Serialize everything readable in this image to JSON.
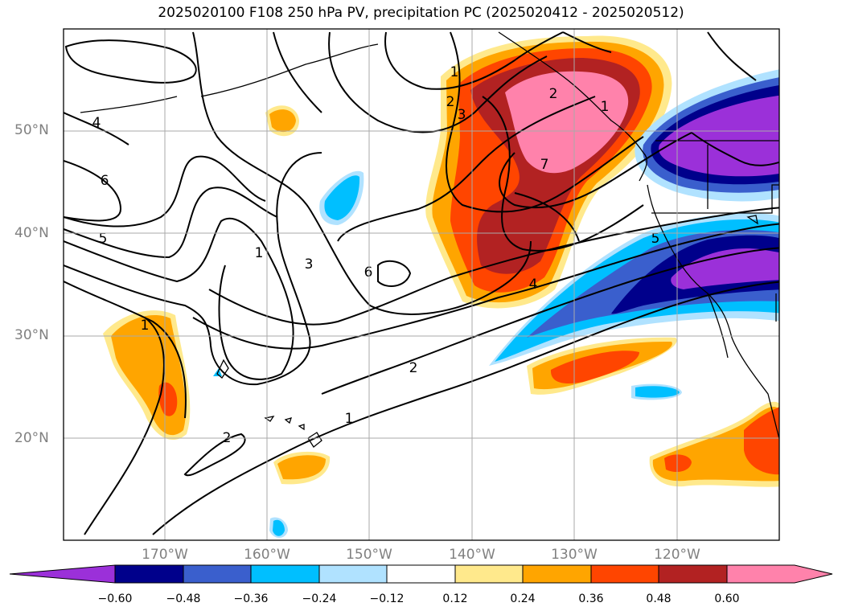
{
  "title": "2025020100 F108 250 hPa PV, precipitation PC (2025020412 - 2025020512)",
  "map": {
    "lon_labels": [
      "170°W",
      "160°W",
      "150°W",
      "140°W",
      "130°W",
      "120°W"
    ],
    "lat_labels": [
      "50°N",
      "40°N",
      "30°N",
      "20°N"
    ]
  },
  "pv_contour_labels": [
    "1",
    "2",
    "3",
    "4",
    "5",
    "6",
    "7",
    "1",
    "2",
    "3",
    "4",
    "5",
    "6",
    "1",
    "2",
    "1",
    "2",
    "1"
  ],
  "colorbar": {
    "ticks": [
      "−0.60",
      "−0.48",
      "−0.36",
      "−0.24",
      "−0.12",
      "0.12",
      "0.24",
      "0.36",
      "0.48",
      "0.60"
    ],
    "colors": [
      "#9b30d9",
      "#00008b",
      "#3a5fcd",
      "#00bfff",
      "#b0e2ff",
      "#ffffff",
      "#ffe98c",
      "#ffa500",
      "#ff4500",
      "#b22222",
      "#ff82ab",
      "#ff82ab"
    ]
  }
}
